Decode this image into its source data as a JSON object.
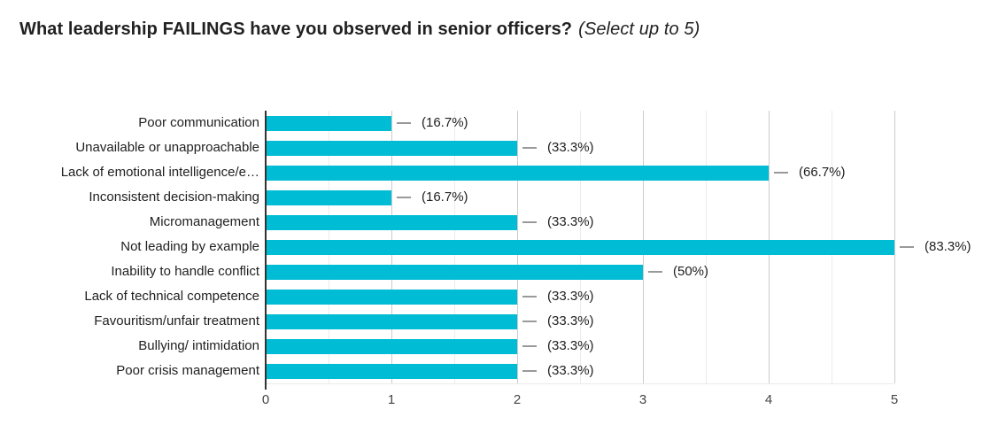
{
  "title": {
    "main": "What leadership FAILINGS have you observed in senior officers?",
    "suffix": "(Select up to 5)"
  },
  "chart_data": {
    "type": "bar",
    "orientation": "horizontal",
    "title": "What leadership FAILINGS have you observed in senior officers? (Select up to 5)",
    "categories": [
      "Poor communication",
      "Unavailable or unapproachable",
      "Lack of emotional intelligence/e…",
      "Inconsistent decision-making",
      "Micromanagement",
      "Not leading by example",
      "Inability to handle conflict",
      "Lack of technical competence",
      "Favouritism/unfair treatment",
      "Bullying/ intimidation",
      "Poor crisis management"
    ],
    "values": [
      1,
      2,
      4,
      1,
      2,
      5,
      3,
      2,
      2,
      2,
      2
    ],
    "percent_labels": [
      "(16.7%)",
      "(33.3%)",
      "(66.7%)",
      "(16.7%)",
      "(33.3%)",
      "(83.3%)",
      "(50%)",
      "(33.3%)",
      "(33.3%)",
      "(33.3%)",
      "(33.3%)"
    ],
    "xlabel": "",
    "ylabel": "",
    "xlim": [
      0,
      5
    ],
    "x_ticks": [
      0,
      1,
      2,
      3,
      4,
      5
    ],
    "x_minor_ticks": [
      0.5,
      1.5,
      2.5,
      3.5,
      4.5
    ],
    "grid": true,
    "legend": false,
    "bar_color": "#00BCD4",
    "leader_line_color": "#999999",
    "axis_line_color": "#333333",
    "major_gridline_color": "#cccccc",
    "minor_gridline_color": "#ebebeb",
    "label_color": "#212121",
    "tick_label_color": "#444444"
  }
}
